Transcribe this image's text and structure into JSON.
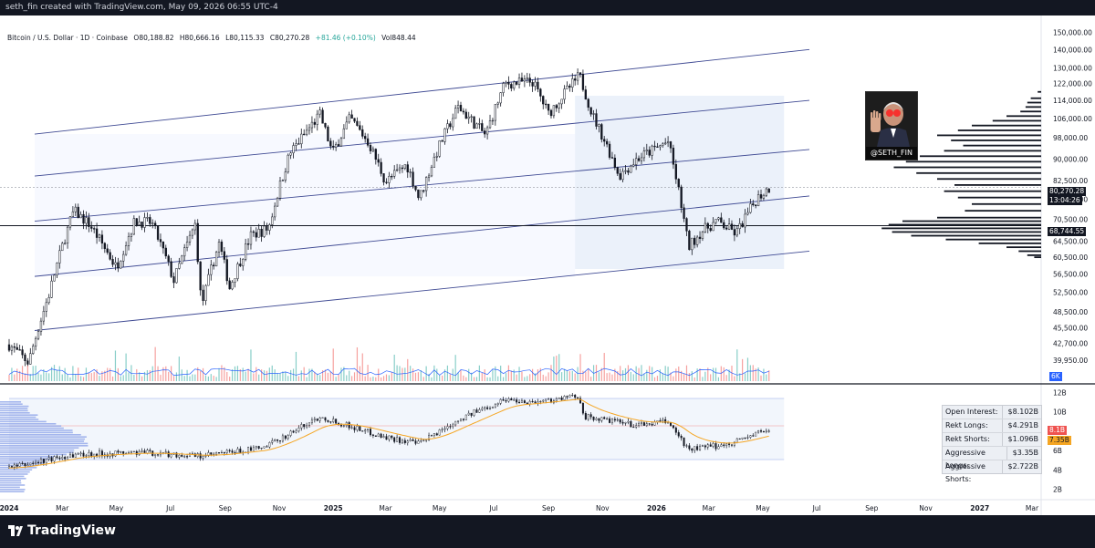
{
  "header": {
    "attribution": "seth_fin created with TradingView.com, May 09, 2026 06:55 UTC-4"
  },
  "legend": {
    "symbol": "Bitcoin / U.S. Dollar · 1D · Coinbase",
    "open": "O80,188.82",
    "high": "H80,666.16",
    "low": "L80,115.33",
    "close": "C80,270.28",
    "change": "+81.46 (+0.10%)",
    "volume": "Vol848.44"
  },
  "avatar": {
    "handle": "@SETH_FIN"
  },
  "price_tags": {
    "last_price": "80,270.28",
    "countdown": "13:04:26",
    "hline_price": "68,744.55",
    "volume_tag": "6K"
  },
  "oi_tags": {
    "red": "8.1B",
    "orange": "7.35B"
  },
  "stats": [
    {
      "label": "Open Interest:",
      "value": "$8.102B"
    },
    {
      "label": "Rekt Longs:",
      "value": "$4.291B"
    },
    {
      "label": "Rekt Shorts:",
      "value": "$1.096B"
    },
    {
      "label": "Aggressive Longs:",
      "value": "$3.35B"
    },
    {
      "label": "Aggressive Shorts:",
      "value": "$2.722B"
    }
  ],
  "footer": {
    "brand": "TradingView"
  },
  "colors": {
    "up": "#26a69a",
    "down": "#ef5350",
    "channel": "#3f4a93",
    "ma": "#f5a623",
    "oi_bar": "#8fa5e8",
    "stats_bg": "#eceff4"
  },
  "chart_data": [
    {
      "type": "candlestick",
      "title": "Bitcoin / U.S. Dollar · 1D · Coinbase",
      "x_tick_labels": [
        "2024",
        "Mar",
        "May",
        "Jul",
        "Sep",
        "Nov",
        "2025",
        "Mar",
        "May",
        "Jul",
        "Sep",
        "Nov",
        "2026",
        "Mar",
        "May",
        "Jul",
        "Sep",
        "Nov",
        "2027",
        "Mar"
      ],
      "y_tick_labels": [
        "150,000.00",
        "140,000.00",
        "130,000.00",
        "122,000.00",
        "114,000.00",
        "106,000.00",
        "98,000.00",
        "90,000.00",
        "82,500.00",
        "76,500.00",
        "70,500.00",
        "64,500.00",
        "60,500.00",
        "56,500.00",
        "52,500.00",
        "48,500.00",
        "45,500.00",
        "42,700.00",
        "39,950.00"
      ],
      "y_scale": "log",
      "ylim": [
        37500,
        152000
      ],
      "price_path": [
        {
          "date": "2024-01-01",
          "price": 42500
        },
        {
          "date": "2024-01-23",
          "price": 39500
        },
        {
          "date": "2024-02-15",
          "price": 52000
        },
        {
          "date": "2024-03-14",
          "price": 73000
        },
        {
          "date": "2024-04-01",
          "price": 69000
        },
        {
          "date": "2024-05-01",
          "price": 58000
        },
        {
          "date": "2024-05-22",
          "price": 70000
        },
        {
          "date": "2024-06-10",
          "price": 69500
        },
        {
          "date": "2024-07-05",
          "price": 55000
        },
        {
          "date": "2024-07-29",
          "price": 69000
        },
        {
          "date": "2024-08-05",
          "price": 49500
        },
        {
          "date": "2024-08-25",
          "price": 64000
        },
        {
          "date": "2024-09-06",
          "price": 53500
        },
        {
          "date": "2024-09-30",
          "price": 66000
        },
        {
          "date": "2024-10-20",
          "price": 68000
        },
        {
          "date": "2024-11-13",
          "price": 92000
        },
        {
          "date": "2024-12-17",
          "price": 107500
        },
        {
          "date": "2024-12-31",
          "price": 92000
        },
        {
          "date": "2025-01-20",
          "price": 106000
        },
        {
          "date": "2025-02-10",
          "price": 96000
        },
        {
          "date": "2025-03-01",
          "price": 82000
        },
        {
          "date": "2025-03-25",
          "price": 88000
        },
        {
          "date": "2025-04-08",
          "price": 76500
        },
        {
          "date": "2025-05-01",
          "price": 95000
        },
        {
          "date": "2025-05-22",
          "price": 111000
        },
        {
          "date": "2025-06-22",
          "price": 99000
        },
        {
          "date": "2025-07-14",
          "price": 122000
        },
        {
          "date": "2025-08-14",
          "price": 123000
        },
        {
          "date": "2025-09-01",
          "price": 108000
        },
        {
          "date": "2025-10-06",
          "price": 126000
        },
        {
          "date": "2025-10-20",
          "price": 108000
        },
        {
          "date": "2025-11-20",
          "price": 84000
        },
        {
          "date": "2025-12-10",
          "price": 90000
        },
        {
          "date": "2026-01-14",
          "price": 96500
        },
        {
          "date": "2026-02-06",
          "price": 63000
        },
        {
          "date": "2026-02-20",
          "price": 67000
        },
        {
          "date": "2026-03-10",
          "price": 70000
        },
        {
          "date": "2026-04-01",
          "price": 66500
        },
        {
          "date": "2026-04-25",
          "price": 77000
        },
        {
          "date": "2026-05-09",
          "price": 80270
        }
      ],
      "horizontal_line": 68744.55,
      "last_price": 80270.28,
      "channel_lines": [
        [
          {
            "date": "2024-01-01",
            "price": 99500
          },
          {
            "date": "2026-05-31",
            "price": 140000
          }
        ],
        [
          {
            "date": "2024-01-01",
            "price": 84000
          },
          {
            "date": "2026-05-31",
            "price": 114000
          }
        ],
        [
          {
            "date": "2024-01-01",
            "price": 70000
          },
          {
            "date": "2026-05-31",
            "price": 93500
          }
        ],
        [
          {
            "date": "2024-01-01",
            "price": 56000
          },
          {
            "date": "2026-05-31",
            "price": 77500
          }
        ],
        [
          {
            "date": "2024-01-01",
            "price": 45000
          },
          {
            "date": "2026-05-31",
            "price": 62000
          }
        ]
      ]
    },
    {
      "type": "line",
      "title": "Open Interest",
      "y_tick_labels": [
        "12B",
        "10B",
        "8B",
        "6B",
        "4B",
        "2B"
      ],
      "ylim": [
        1.5,
        12.5
      ],
      "oi_path": [
        {
          "date": "2024-01-01",
          "value": 4.2
        },
        {
          "date": "2024-03-14",
          "value": 5.6
        },
        {
          "date": "2024-06-01",
          "value": 5.8
        },
        {
          "date": "2024-08-05",
          "value": 5.4
        },
        {
          "date": "2024-10-15",
          "value": 6.3
        },
        {
          "date": "2024-12-17",
          "value": 9.5
        },
        {
          "date": "2025-02-28",
          "value": 7.4
        },
        {
          "date": "2025-04-08",
          "value": 6.7
        },
        {
          "date": "2025-05-22",
          "value": 9.2
        },
        {
          "date": "2025-07-14",
          "value": 11.3
        },
        {
          "date": "2025-08-14",
          "value": 11.0
        },
        {
          "date": "2025-10-06",
          "value": 11.6
        },
        {
          "date": "2025-10-11",
          "value": 9.5
        },
        {
          "date": "2025-12-10",
          "value": 8.6
        },
        {
          "date": "2026-01-14",
          "value": 9.0
        },
        {
          "date": "2026-02-06",
          "value": 6.1
        },
        {
          "date": "2026-03-20",
          "value": 6.6
        },
        {
          "date": "2026-04-25",
          "value": 7.8
        },
        {
          "date": "2026-05-09",
          "value": 8.1
        }
      ]
    }
  ]
}
